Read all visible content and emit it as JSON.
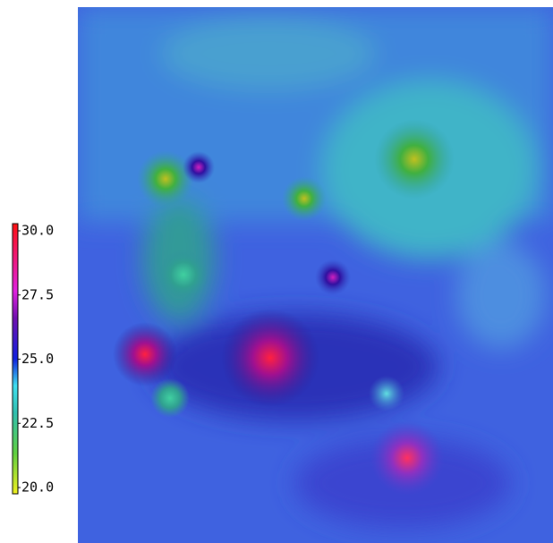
{
  "chart_data": {
    "type": "heatmap",
    "colorbar": {
      "lim": [
        20,
        30
      ],
      "ticks": [
        {
          "value": 30,
          "label": "30.0"
        },
        {
          "value": 27.5,
          "label": "27.5"
        },
        {
          "value": 25,
          "label": "25.0"
        },
        {
          "value": 22.5,
          "label": "22.5"
        },
        {
          "value": 20,
          "label": "20.0"
        }
      ]
    }
  }
}
